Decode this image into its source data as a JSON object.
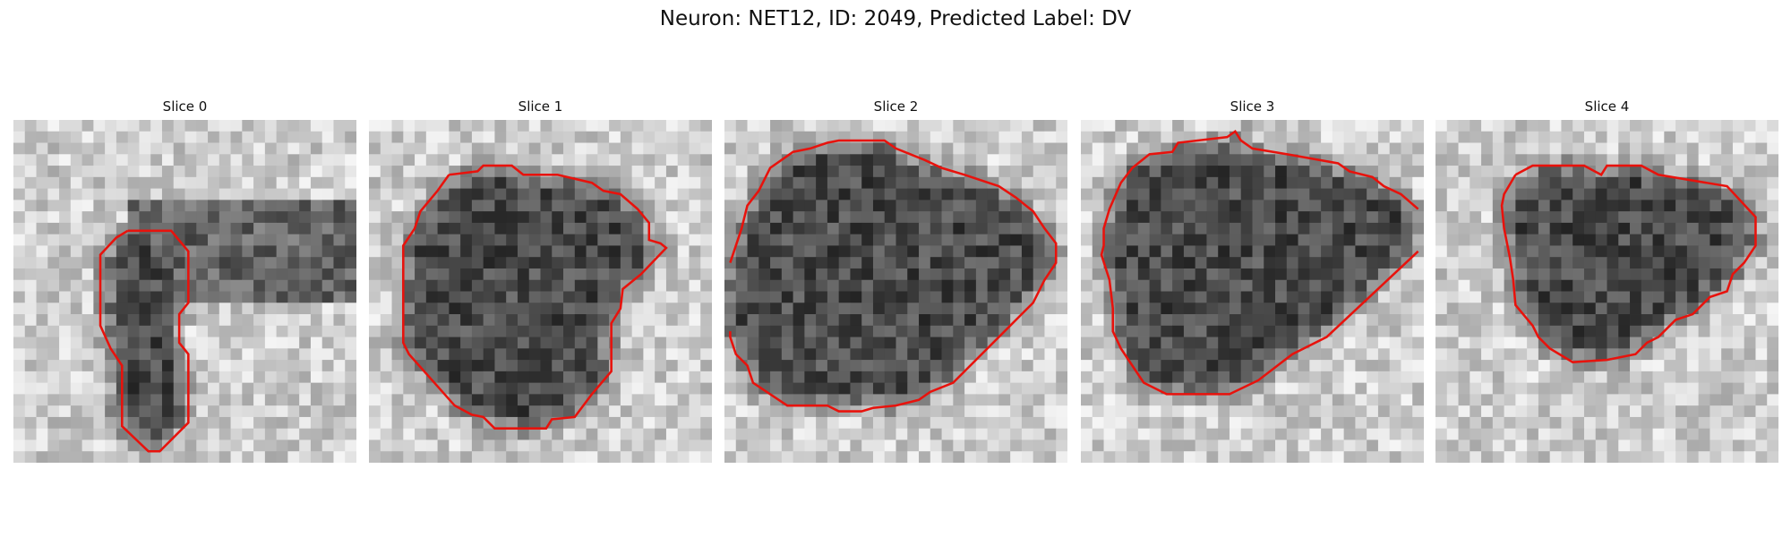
{
  "header": {
    "title": "Neuron: NET12, ID: 2049, Predicted Label: DV"
  },
  "panels": [
    {
      "title": "Slice 0"
    },
    {
      "title": "Slice 1"
    },
    {
      "title": "Slice 2"
    },
    {
      "title": "Slice 3"
    },
    {
      "title": "Slice 4"
    }
  ]
}
